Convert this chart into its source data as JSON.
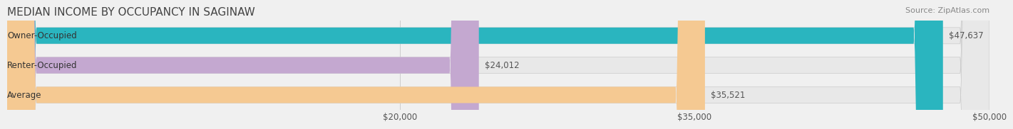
{
  "title": "MEDIAN INCOME BY OCCUPANCY IN SAGINAW",
  "source": "Source: ZipAtlas.com",
  "categories": [
    "Owner-Occupied",
    "Renter-Occupied",
    "Average"
  ],
  "values": [
    47637,
    24012,
    35521
  ],
  "bar_colors": [
    "#2ab5bf",
    "#c4a8d0",
    "#f5c992"
  ],
  "bar_edge_colors": [
    "#2ab5bf",
    "#c4a8d0",
    "#f5c992"
  ],
  "value_labels": [
    "$47,637",
    "$24,012",
    "$35,521"
  ],
  "xlim": [
    0,
    50000
  ],
  "xticks": [
    20000,
    35000,
    50000
  ],
  "xtick_labels": [
    "$20,000",
    "$35,000",
    "$50,000"
  ],
  "title_fontsize": 11,
  "source_fontsize": 8,
  "label_fontsize": 8.5,
  "value_fontsize": 8.5,
  "bar_height": 0.55,
  "background_color": "#f0f0f0",
  "bar_bg_color": "#e8e8e8"
}
